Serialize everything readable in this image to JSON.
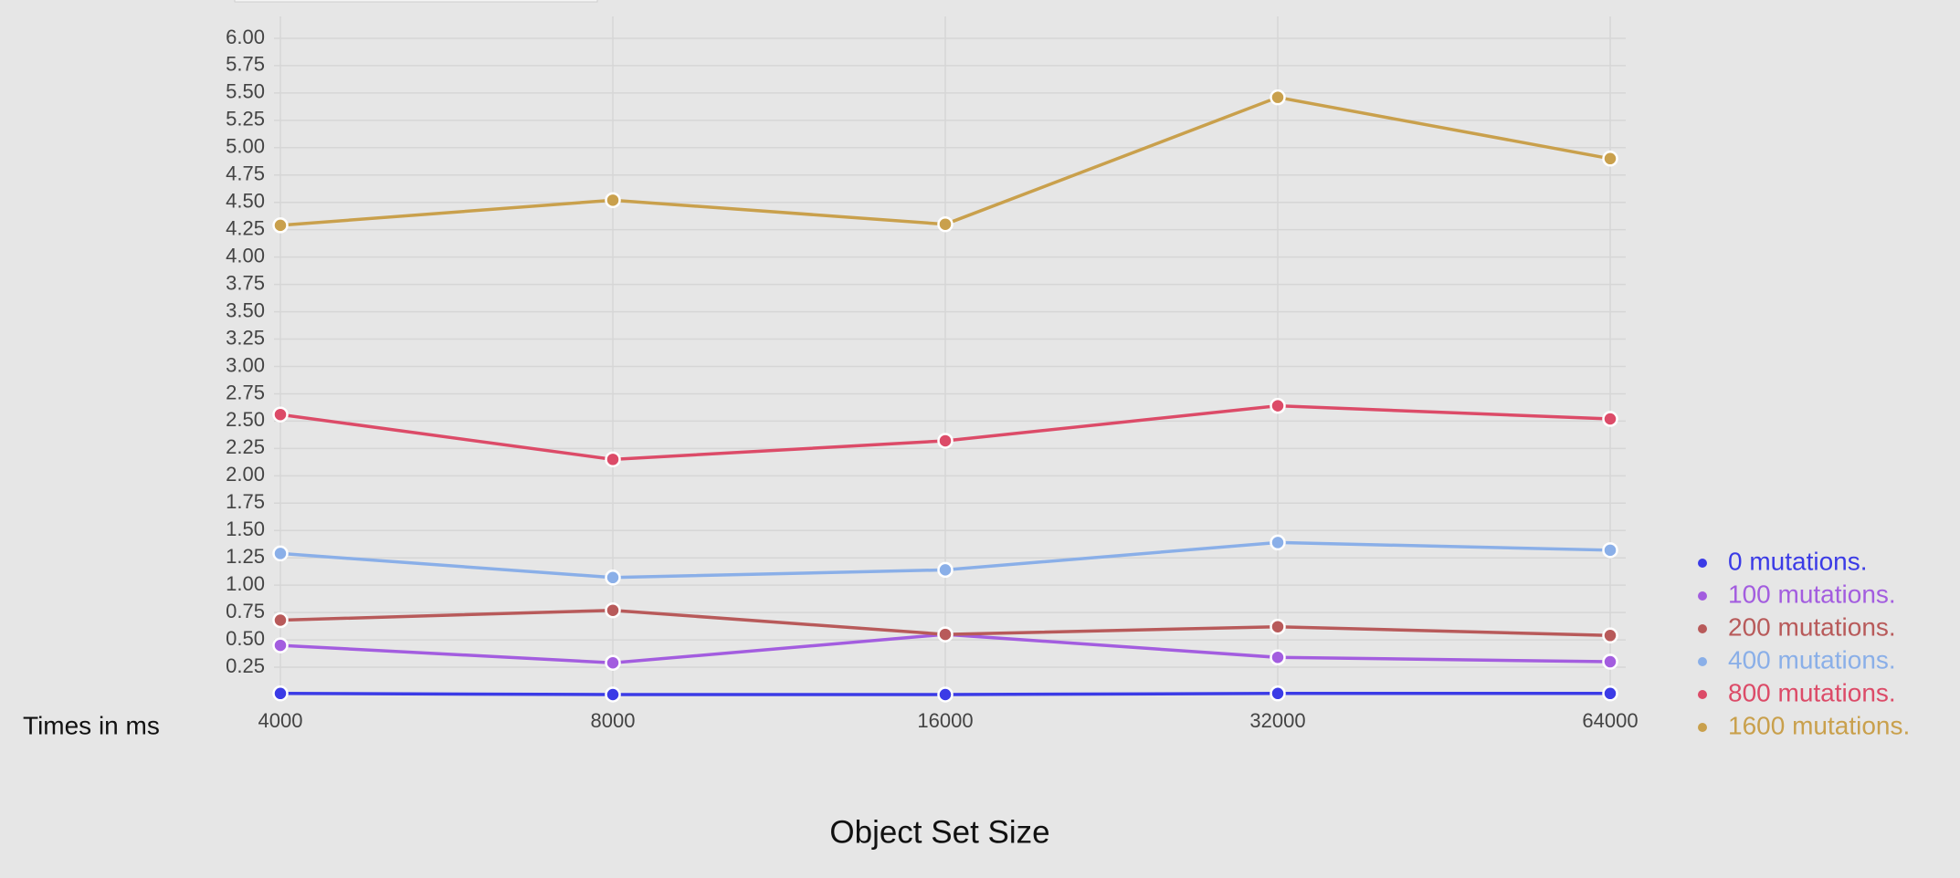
{
  "chart_data": {
    "type": "line",
    "x_label": "Object Set Size",
    "y_label": "Times in ms",
    "categories": [
      "4000",
      "8000",
      "16000",
      "32000",
      "64000"
    ],
    "series": [
      {
        "name": "0 mutations.",
        "color": "#3b3be6",
        "values": [
          0.01,
          0.0,
          0.0,
          0.01,
          0.01
        ]
      },
      {
        "name": "100 mutations.",
        "color": "#a35ddf",
        "values": [
          0.45,
          0.29,
          0.55,
          0.34,
          0.3
        ]
      },
      {
        "name": "200 mutations.",
        "color": "#b85a5a",
        "values": [
          0.68,
          0.77,
          0.55,
          0.62,
          0.54
        ]
      },
      {
        "name": "400 mutations.",
        "color": "#8aafe8",
        "values": [
          1.29,
          1.07,
          1.14,
          1.39,
          1.32
        ]
      },
      {
        "name": "800 mutations.",
        "color": "#dc4b68",
        "values": [
          2.56,
          2.15,
          2.32,
          2.64,
          2.52
        ]
      },
      {
        "name": "1600 mutations.",
        "color": "#c9a04c",
        "values": [
          4.29,
          4.52,
          4.3,
          5.46,
          4.9
        ]
      }
    ],
    "ylim": [
      0,
      6.2
    ],
    "yticks": [
      0.25,
      {
        "value": 0.5,
        "label": "0.50"
      },
      0.75,
      {
        "value": 1,
        "label": "1.00"
      },
      1.25,
      {
        "value": 1.5,
        "label": "1.50"
      },
      1.75,
      {
        "value": 2,
        "label": "2.00"
      },
      2.25,
      {
        "value": 2.5,
        "label": "2.50"
      },
      2.75,
      {
        "value": 3,
        "label": "3.00"
      },
      3.25,
      {
        "value": 3.5,
        "label": "3.50"
      },
      3.75,
      {
        "value": 4,
        "label": "4.00"
      },
      4.25,
      {
        "value": 4.5,
        "label": "4.50"
      },
      4.75,
      {
        "value": 5,
        "label": "5.00"
      },
      5.25,
      {
        "value": 5.5,
        "label": "5.50"
      },
      5.75,
      {
        "value": 6,
        "label": "6.00"
      }
    ],
    "grid": true,
    "legend": "right"
  }
}
